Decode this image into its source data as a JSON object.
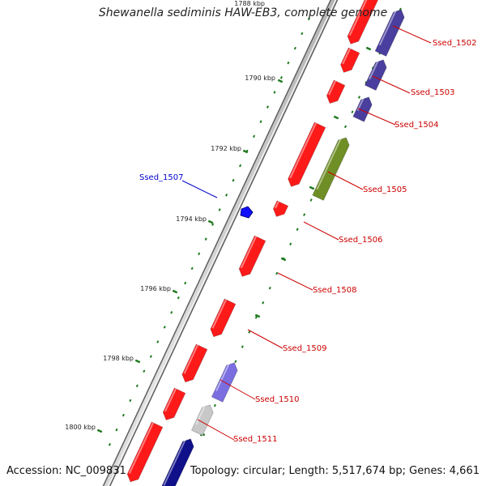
{
  "title": "Shewanella sediminis HAW-EB3, complete genome",
  "accession_text": "Accession: NC_009831",
  "topology_text": "Topology: circular; Length: 5,517,674 bp; Genes: 4,661",
  "colors": {
    "forward_gene": "#ff1a1a",
    "reverse_gene_dark": "#4a3f9e",
    "reverse_gene_light": "#7a6ee0",
    "reverse_gene_navy": "#10108a",
    "rna_gene": "#6f8f26",
    "pseudo_gene": "#c8c8c8",
    "selected_gene": "#1010ff",
    "backbone": "#9a9a9a",
    "tick": "#1f7a1f",
    "label_red": "#cc0000",
    "label_blue": "#0000cc"
  },
  "scale": {
    "ticks": [
      {
        "label": "1788 kbp"
      },
      {
        "label": "1790 kbp"
      },
      {
        "label": "1792 kbp"
      },
      {
        "label": "1794 kbp"
      },
      {
        "label": "1796 kbp"
      },
      {
        "label": "1798 kbp"
      },
      {
        "label": "1800 kbp"
      }
    ]
  },
  "gene_labels": {
    "Ssed_1502": "Ssed_1502",
    "Ssed_1503": "Ssed_1503",
    "Ssed_1504": "Ssed_1504",
    "Ssed_1505": "Ssed_1505",
    "Ssed_1506": "Ssed_1506",
    "Ssed_1507": "Ssed_1507",
    "Ssed_1508": "Ssed_1508",
    "Ssed_1509": "Ssed_1509",
    "Ssed_1510": "Ssed_1510",
    "Ssed_1511": "Ssed_1511"
  }
}
